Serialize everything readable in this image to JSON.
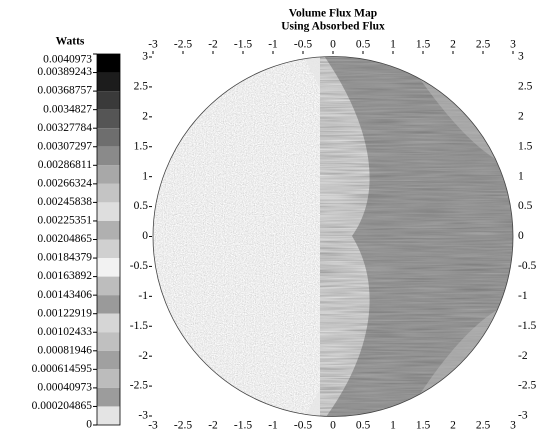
{
  "chart_data": {
    "type": "heatmap",
    "title": "Volume Flux Map",
    "subtitle": "Using Absorbed Flux",
    "colorbar_label": "Watts",
    "xlim": [
      -3,
      3
    ],
    "ylim": [
      -3,
      3
    ],
    "xticks": [
      -3,
      -2.5,
      -2,
      -1.5,
      -1,
      -0.5,
      0,
      0.5,
      1,
      1.5,
      2,
      2.5,
      3
    ],
    "yticks": [
      3,
      2.5,
      2,
      1.5,
      1,
      0.5,
      0,
      -0.5,
      -1,
      -1.5,
      -2,
      -2.5,
      -3
    ],
    "clim": [
      0,
      0.0040973
    ],
    "colorbar_ticks": [
      0.0040973,
      0.00389243,
      0.00368757,
      0.0034827,
      0.00327784,
      0.00307297,
      0.00286811,
      0.00266324,
      0.00245838,
      0.00225351,
      0.00204865,
      0.00184379,
      0.00163892,
      0.00143406,
      0.00122919,
      0.00102433,
      0.00081946,
      0.000614595,
      0.00040973,
      0.000204865,
      0
    ],
    "colorbar_colors": [
      "#000000",
      "#1c1c1c",
      "#3a3a3a",
      "#555555",
      "#6e6e6e",
      "#8a8a8a",
      "#a8a8a8",
      "#c4c4c4",
      "#dedede",
      "#b0b0b0",
      "#d0d0d0",
      "#f2f2f2",
      "#bdbdbd",
      "#9a9a9a",
      "#d6d6d6",
      "#c0c0c0",
      "#a0a0a0",
      "#bcbcbc",
      "#9c9c9c",
      "#e4e4e4"
    ]
  }
}
